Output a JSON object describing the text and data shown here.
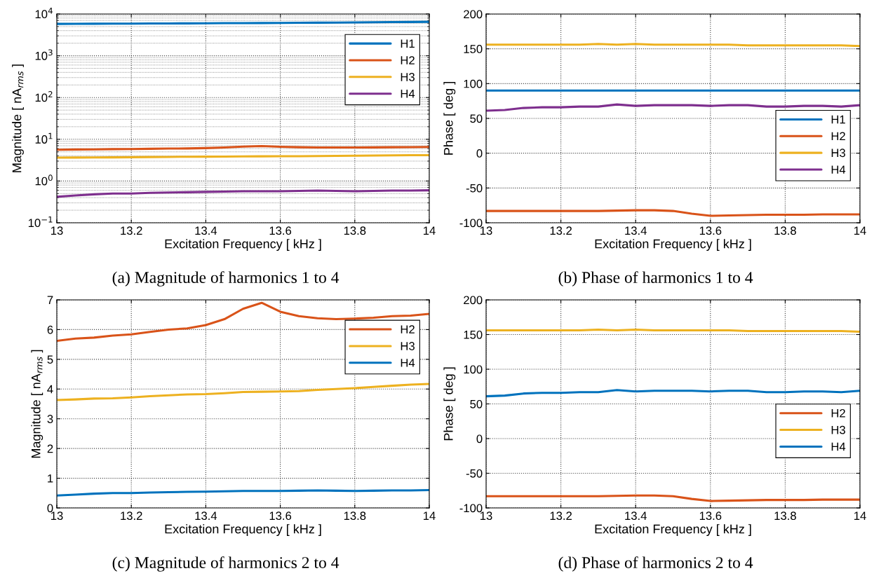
{
  "chart_data": [
    {
      "type": "line",
      "title": "(a) Magnitude of harmonics 1 to 4",
      "xlabel": "Excitation Frequency [ kHz ]",
      "ylabel": "Magnitude [ nA$_{rms}$ ]",
      "log": "y",
      "grid": true,
      "legend": "top right",
      "x": [
        13.0,
        13.05,
        13.1,
        13.15,
        13.2,
        13.25,
        13.3,
        13.35,
        13.4,
        13.45,
        13.5,
        13.55,
        13.6,
        13.65,
        13.7,
        13.75,
        13.8,
        13.85,
        13.9,
        13.95,
        14.0
      ],
      "xlim": [
        13,
        14
      ],
      "xticks": [
        13,
        13.2,
        13.4,
        13.6,
        13.8,
        14
      ],
      "ylim": [
        0.1,
        10000
      ],
      "yticks": [
        {
          "value": 0.1,
          "label": "10$^{−1}$"
        },
        {
          "value": 1,
          "label": "10$^{0}$"
        },
        {
          "value": 10,
          "label": "10$^{1}$"
        },
        {
          "value": 100,
          "label": "10$^{2}$"
        },
        {
          "value": 1000,
          "label": "10$^{3}$"
        },
        {
          "value": 10000,
          "label": "10$^{4}$"
        }
      ],
      "series": [
        {
          "name": "H1",
          "color": "#0072bd",
          "values": [
            5800,
            5820,
            5850,
            5870,
            5900,
            5920,
            5950,
            5970,
            6000,
            6030,
            6050,
            6080,
            6100,
            6150,
            6200,
            6250,
            6300,
            6350,
            6400,
            6450,
            6500
          ]
        },
        {
          "name": "H2",
          "color": "#d95319",
          "values": [
            5.62,
            5.7,
            5.73,
            5.8,
            5.84,
            5.92,
            6.0,
            6.04,
            6.15,
            6.35,
            6.7,
            6.9,
            6.6,
            6.45,
            6.38,
            6.35,
            6.37,
            6.4,
            6.45,
            6.47,
            6.53
          ]
        },
        {
          "name": "H3",
          "color": "#edb120",
          "values": [
            3.63,
            3.65,
            3.68,
            3.69,
            3.72,
            3.76,
            3.79,
            3.82,
            3.83,
            3.86,
            3.9,
            3.91,
            3.92,
            3.93,
            3.97,
            4.0,
            4.03,
            4.07,
            4.11,
            4.15,
            4.17
          ]
        },
        {
          "name": "H4",
          "color": "#7e2f8e",
          "values": [
            0.42,
            0.45,
            0.48,
            0.5,
            0.5,
            0.52,
            0.53,
            0.54,
            0.55,
            0.56,
            0.57,
            0.57,
            0.57,
            0.58,
            0.59,
            0.58,
            0.57,
            0.58,
            0.59,
            0.59,
            0.6
          ]
        }
      ]
    },
    {
      "type": "line",
      "title": "(b) Phase of harmonics 1 to 4",
      "xlabel": "Excitation Frequency [ kHz ]",
      "ylabel": "Phase [ deg ]",
      "grid": true,
      "legend": "right",
      "x": [
        13.0,
        13.05,
        13.1,
        13.15,
        13.2,
        13.25,
        13.3,
        13.35,
        13.4,
        13.45,
        13.5,
        13.55,
        13.6,
        13.65,
        13.7,
        13.75,
        13.8,
        13.85,
        13.9,
        13.95,
        14.0
      ],
      "xlim": [
        13,
        14
      ],
      "xticks": [
        13,
        13.2,
        13.4,
        13.6,
        13.8,
        14
      ],
      "ylim": [
        -100,
        200
      ],
      "yticks": [
        -100,
        -50,
        0,
        50,
        100,
        150,
        200
      ],
      "series": [
        {
          "name": "H1",
          "color": "#0072bd",
          "values": [
            90,
            90,
            90,
            90,
            90,
            90,
            90,
            90,
            90,
            90,
            90,
            90,
            90,
            90,
            90,
            90,
            90,
            90,
            90,
            90,
            90
          ]
        },
        {
          "name": "H2",
          "color": "#d95319",
          "values": [
            -83,
            -83,
            -83,
            -83,
            -83,
            -83,
            -83,
            -82.5,
            -82,
            -82,
            -83,
            -87,
            -90,
            -89.5,
            -89,
            -88.5,
            -88.5,
            -88.5,
            -88,
            -88,
            -88
          ]
        },
        {
          "name": "H3",
          "color": "#edb120",
          "values": [
            156,
            156,
            156,
            156,
            156,
            156,
            157,
            156,
            157,
            156,
            156,
            156,
            156,
            156,
            155,
            155,
            155,
            155,
            155,
            155,
            154
          ]
        },
        {
          "name": "H4",
          "color": "#7e2f8e",
          "values": [
            61,
            62,
            65,
            66,
            66,
            67,
            67,
            70,
            68,
            69,
            69,
            69,
            68,
            69,
            69,
            67,
            67,
            68,
            68,
            67,
            69
          ]
        }
      ]
    },
    {
      "type": "line",
      "title": "(c) Magnitude of harmonics 2 to 4",
      "xlabel": "Excitation Frequency [ kHz ]",
      "ylabel": "Magnitude [ nA$_{rms}$ ]",
      "grid": true,
      "legend": "top right",
      "x": [
        13.0,
        13.05,
        13.1,
        13.15,
        13.2,
        13.25,
        13.3,
        13.35,
        13.4,
        13.45,
        13.5,
        13.55,
        13.6,
        13.65,
        13.7,
        13.75,
        13.8,
        13.85,
        13.9,
        13.95,
        14.0
      ],
      "xlim": [
        13,
        14
      ],
      "xticks": [
        13,
        13.2,
        13.4,
        13.6,
        13.8,
        14
      ],
      "ylim": [
        0,
        7
      ],
      "yticks": [
        0,
        1,
        2,
        3,
        4,
        5,
        6,
        7
      ],
      "series": [
        {
          "name": "H2",
          "color": "#d95319",
          "values": [
            5.62,
            5.7,
            5.73,
            5.8,
            5.84,
            5.92,
            6.0,
            6.04,
            6.15,
            6.35,
            6.7,
            6.9,
            6.6,
            6.45,
            6.38,
            6.35,
            6.37,
            6.4,
            6.45,
            6.47,
            6.53
          ]
        },
        {
          "name": "H3",
          "color": "#edb120",
          "values": [
            3.63,
            3.65,
            3.68,
            3.69,
            3.72,
            3.76,
            3.79,
            3.82,
            3.83,
            3.86,
            3.9,
            3.91,
            3.92,
            3.93,
            3.97,
            4.0,
            4.03,
            4.07,
            4.11,
            4.15,
            4.17
          ]
        },
        {
          "name": "H4",
          "color": "#0072bd",
          "values": [
            0.42,
            0.45,
            0.48,
            0.5,
            0.5,
            0.52,
            0.53,
            0.54,
            0.55,
            0.56,
            0.57,
            0.57,
            0.57,
            0.58,
            0.59,
            0.58,
            0.57,
            0.58,
            0.59,
            0.59,
            0.6
          ]
        }
      ]
    },
    {
      "type": "line",
      "title": "(d) Phase of harmonics 2 to 4",
      "xlabel": "Excitation Frequency [ kHz ]",
      "ylabel": "Phase [ deg ]",
      "grid": true,
      "legend": "right",
      "x": [
        13.0,
        13.05,
        13.1,
        13.15,
        13.2,
        13.25,
        13.3,
        13.35,
        13.4,
        13.45,
        13.5,
        13.55,
        13.6,
        13.65,
        13.7,
        13.75,
        13.8,
        13.85,
        13.9,
        13.95,
        14.0
      ],
      "xlim": [
        13,
        14
      ],
      "xticks": [
        13,
        13.2,
        13.4,
        13.6,
        13.8,
        14
      ],
      "ylim": [
        -100,
        200
      ],
      "yticks": [
        -100,
        -50,
        0,
        50,
        100,
        150,
        200
      ],
      "series": [
        {
          "name": "H2",
          "color": "#d95319",
          "values": [
            -83,
            -83,
            -83,
            -83,
            -83,
            -83,
            -83,
            -82.5,
            -82,
            -82,
            -83,
            -87,
            -90,
            -89.5,
            -89,
            -88.5,
            -88.5,
            -88.5,
            -88,
            -88,
            -88
          ]
        },
        {
          "name": "H3",
          "color": "#edb120",
          "values": [
            156,
            156,
            156,
            156,
            156,
            156,
            157,
            156,
            157,
            156,
            156,
            156,
            156,
            156,
            155,
            155,
            155,
            155,
            155,
            155,
            154
          ]
        },
        {
          "name": "H4",
          "color": "#0072bd",
          "values": [
            61,
            62,
            65,
            66,
            66,
            67,
            67,
            70,
            68,
            69,
            69,
            69,
            68,
            69,
            69,
            67,
            67,
            68,
            68,
            67,
            69
          ]
        }
      ]
    }
  ]
}
